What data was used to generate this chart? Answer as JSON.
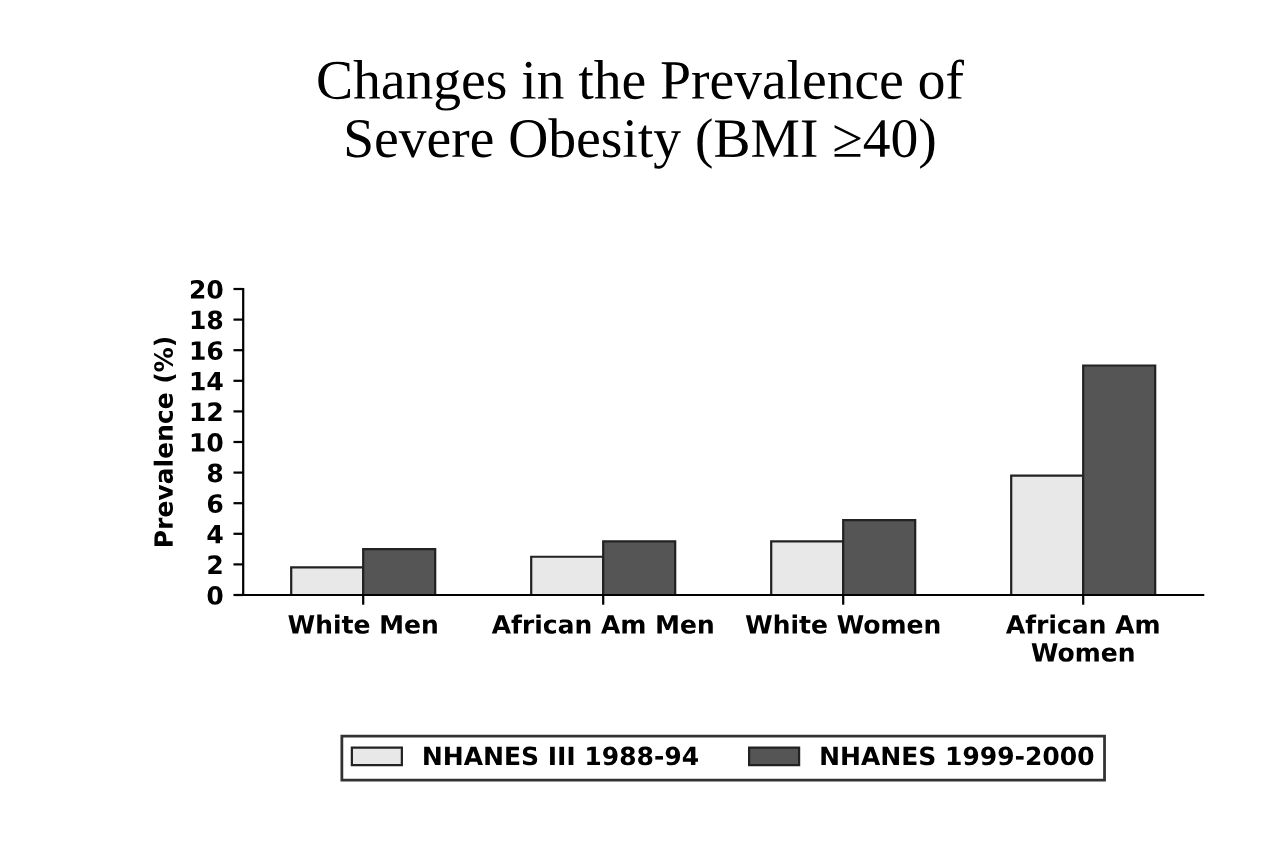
{
  "chart_data": {
    "type": "bar",
    "title": "Changes in the Prevalence of\nSevere Obesity (BMI ≥40)",
    "ylabel": "Prevalence (%)",
    "categories": [
      "White Men",
      "African Am Men",
      "White Women",
      "African Am\nWomen"
    ],
    "series": [
      {
        "name": "NHANES III 1988-94",
        "color": "#e8e8e8",
        "values": [
          1.8,
          2.5,
          3.5,
          7.8
        ]
      },
      {
        "name": "NHANES 1999-2000",
        "color": "#555555",
        "values": [
          3.0,
          3.5,
          4.9,
          15.0
        ]
      }
    ],
    "ylim": [
      0,
      20
    ],
    "yticks": [
      0,
      2,
      4,
      6,
      8,
      10,
      12,
      14,
      16,
      18,
      20
    ],
    "grid": false,
    "legend": "bottom"
  }
}
